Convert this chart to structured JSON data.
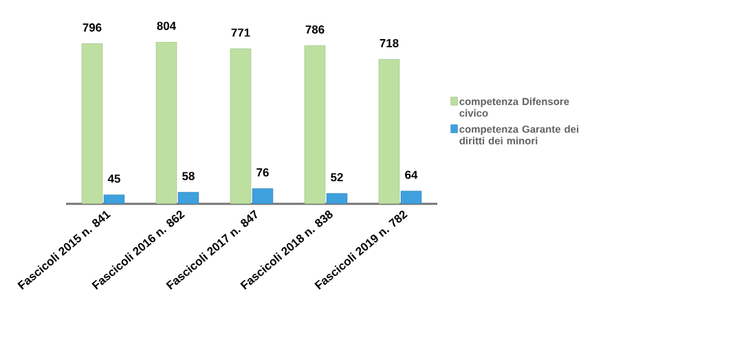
{
  "chart_data": {
    "type": "bar",
    "categories": [
      "Fascicoli 2015 n. 841",
      "Fascicoli 2016 n. 862",
      "Fascicoli 2017 n. 847",
      "Fascicoli 2018 n. 838",
      "Fascicoli 2019 n. 782"
    ],
    "series": [
      {
        "name": "competenza Difensore civico",
        "color": "#bde0a0",
        "values": [
          796,
          804,
          771,
          786,
          718
        ]
      },
      {
        "name": "competenza Garante dei diritti dei minori",
        "color": "#3ea0dd",
        "values": [
          45,
          58,
          76,
          52,
          64
        ]
      }
    ],
    "data_labels": true,
    "legend": "right"
  }
}
